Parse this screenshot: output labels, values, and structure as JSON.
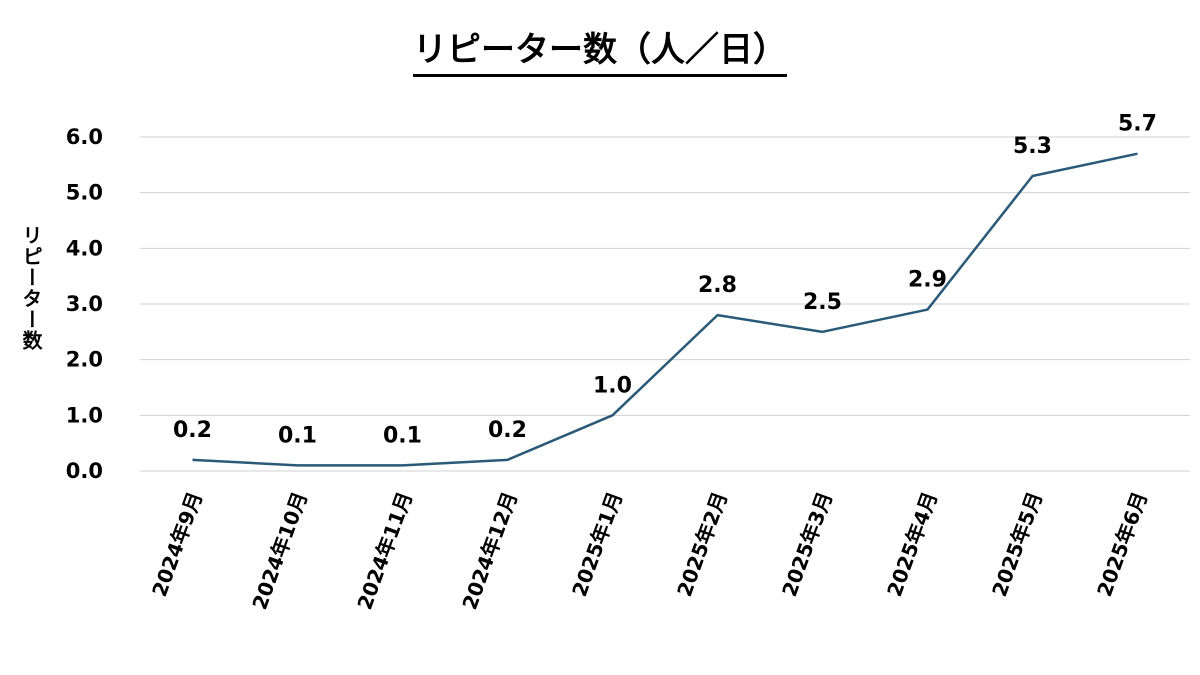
{
  "chart_data": {
    "type": "line",
    "title": "リピーター数（人／日）",
    "ylabel": "リピーター数",
    "xlabel": "",
    "categories": [
      "2024年9月",
      "2024年10月",
      "2024年11月",
      "2024年12月",
      "2025年1月",
      "2025年2月",
      "2025年3月",
      "2025年4月",
      "2025年5月",
      "2025年6月"
    ],
    "series": [
      {
        "values": [
          0.2,
          0.1,
          0.1,
          0.2,
          1.0,
          2.8,
          2.5,
          2.9,
          5.3,
          5.7
        ]
      }
    ],
    "value_labels": [
      "0.2",
      "0.1",
      "0.1",
      "0.2",
      "1.0",
      "2.8",
      "2.5",
      "2.9",
      "5.3",
      "5.7"
    ],
    "ylim": [
      0,
      6
    ],
    "yticks": [
      "0.0",
      "1.0",
      "2.0",
      "3.0",
      "4.0",
      "5.0",
      "6.0"
    ],
    "grid": true,
    "line_color": "#2a5a78",
    "grid_color": "#d0d0d0"
  }
}
